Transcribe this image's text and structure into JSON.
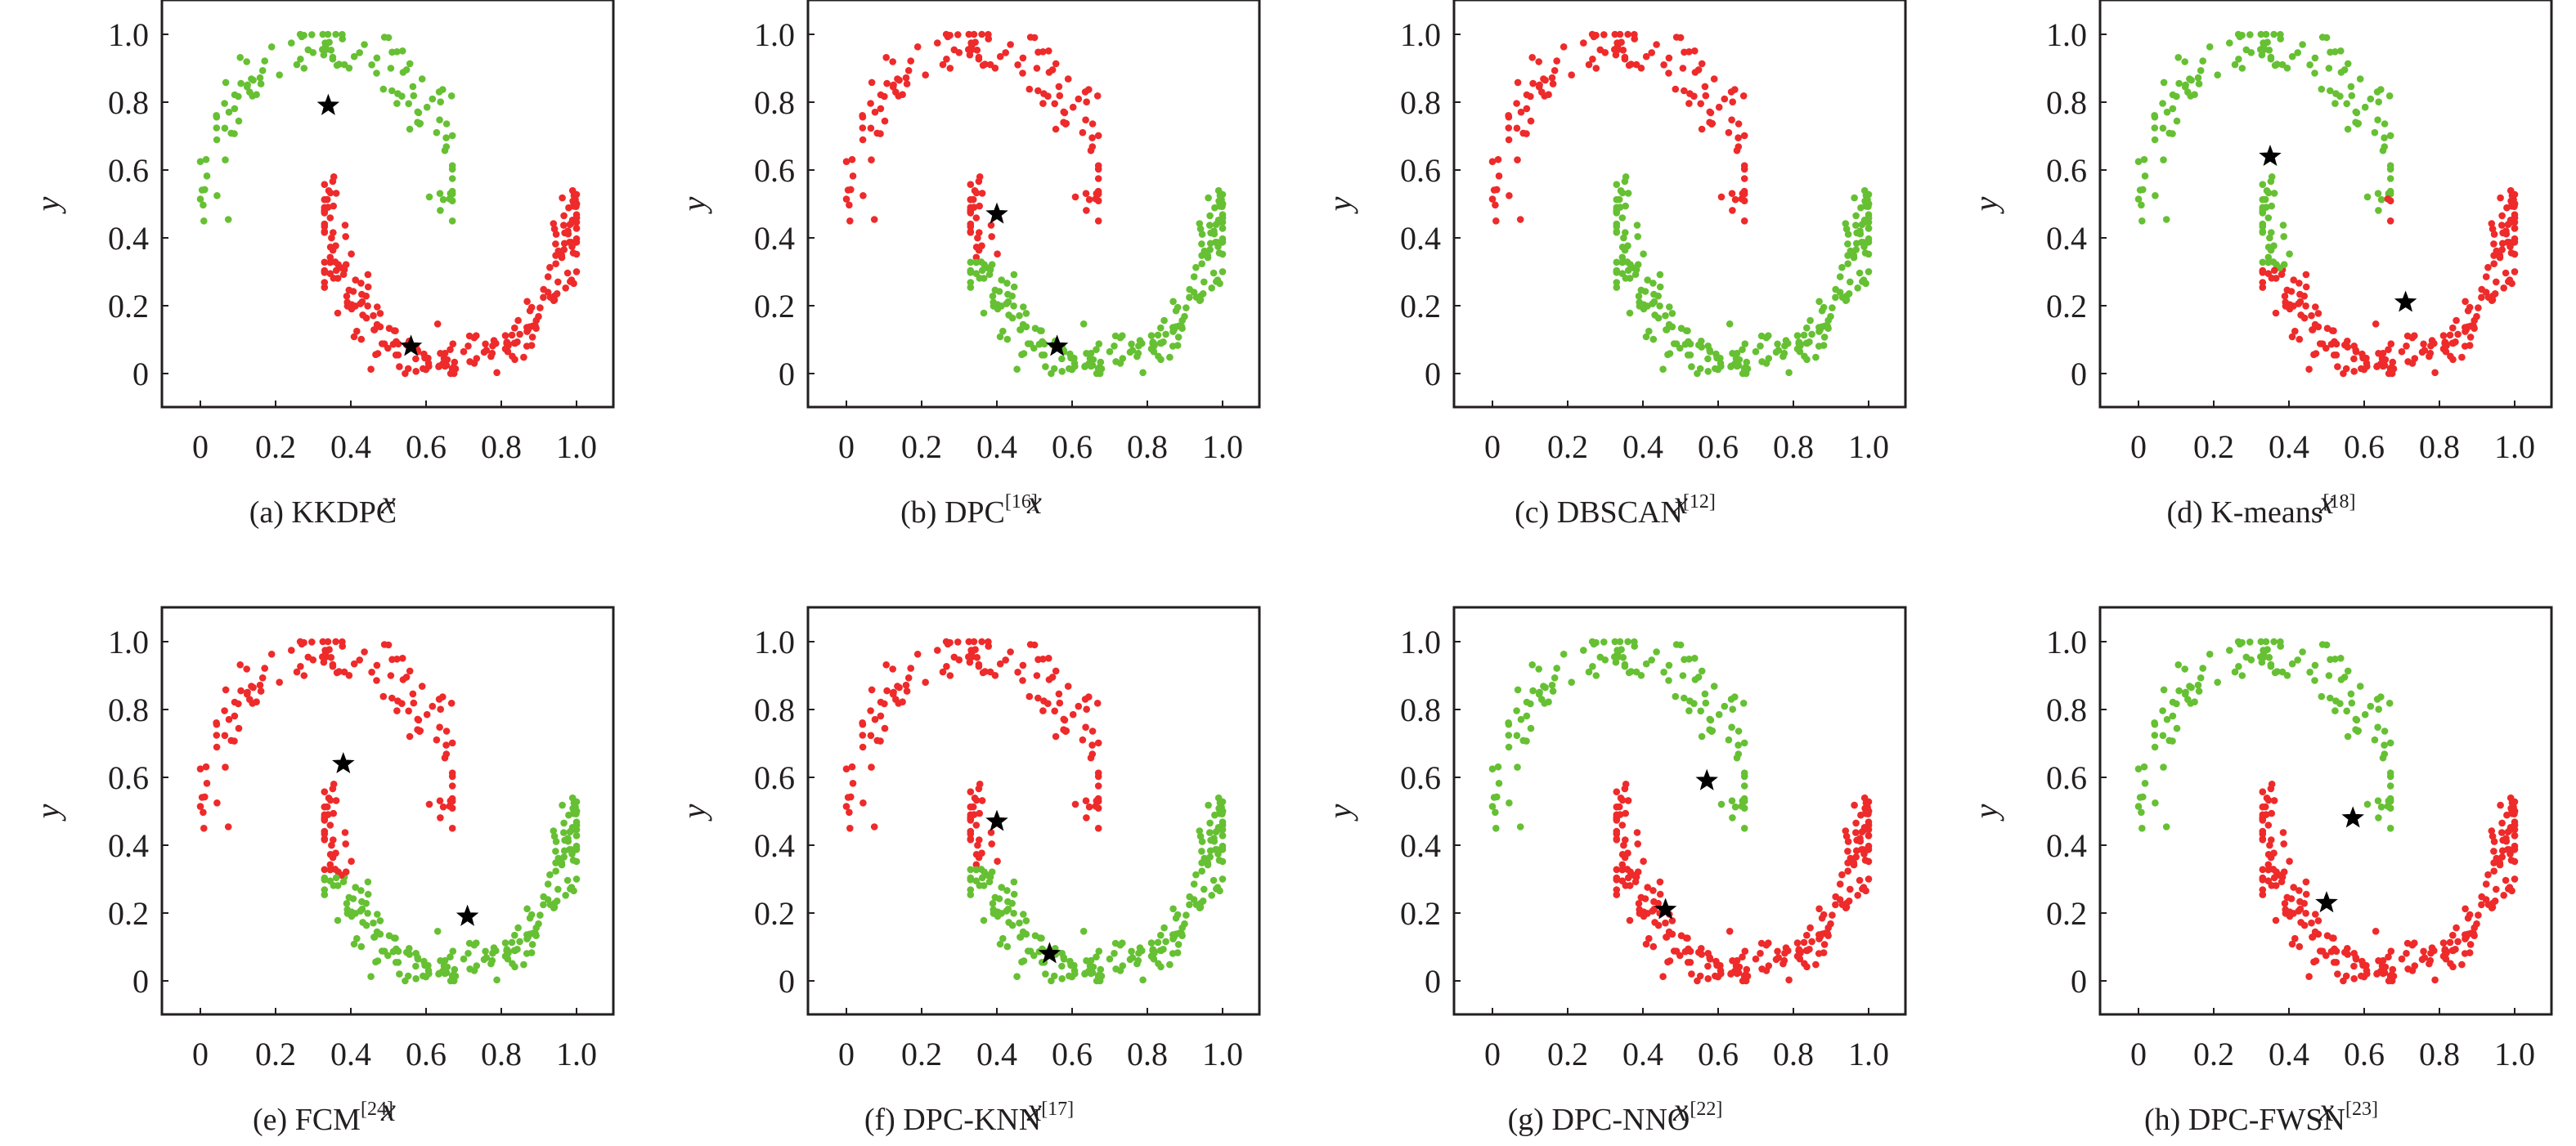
{
  "chart_data": [
    {
      "id": "a",
      "type": "scatter",
      "title_prefix": "(a) KKDPC",
      "title_ref": "",
      "rule": {
        "upper": "green",
        "lower": "red"
      },
      "centers": [
        [
          0.34,
          0.79
        ],
        [
          0.56,
          0.08
        ]
      ]
    },
    {
      "id": "b",
      "type": "scatter",
      "title_prefix": "(b) DPC",
      "title_ref": "[16]",
      "rule": {
        "upper": "red",
        "lower": "green",
        "lower_red_if": {
          "x_max": 0.44,
          "y_min": 0.34
        }
      },
      "centers": [
        [
          0.4,
          0.47
        ],
        [
          0.56,
          0.08
        ]
      ]
    },
    {
      "id": "c",
      "type": "scatter",
      "title_prefix": "(c) DBSCAN",
      "title_ref": "[12]",
      "rule": {
        "upper": "red",
        "lower": "green"
      },
      "centers": []
    },
    {
      "id": "d",
      "type": "scatter",
      "title_prefix": "(d) K-means",
      "title_ref": "[18]",
      "rule": {
        "upper": "green",
        "lower": "red",
        "lower_green_if": {
          "x_max": 0.44,
          "y_min": 0.31
        },
        "upper_red_if": {
          "x_min": 0.65,
          "y_max": 0.52
        }
      },
      "centers": [
        [
          0.35,
          0.64
        ],
        [
          0.71,
          0.21
        ]
      ]
    },
    {
      "id": "e",
      "type": "scatter",
      "title_prefix": "(e) FCM",
      "title_ref": "[24]",
      "rule": {
        "upper": "red",
        "lower": "green",
        "lower_red_if": {
          "x_max": 0.44,
          "y_min": 0.31
        }
      },
      "centers": [
        [
          0.38,
          0.64
        ],
        [
          0.71,
          0.19
        ]
      ]
    },
    {
      "id": "f",
      "type": "scatter",
      "title_prefix": "(f) DPC-KNN",
      "title_ref": "[17]",
      "rule": {
        "upper": "red",
        "lower": "green",
        "lower_red_if": {
          "x_max": 0.44,
          "y_min": 0.34
        }
      },
      "centers": [
        [
          0.4,
          0.47
        ],
        [
          0.54,
          0.08
        ]
      ]
    },
    {
      "id": "g",
      "type": "scatter",
      "title_prefix": "(g) DPC-NNO",
      "title_ref": "[22]",
      "rule": {
        "upper": "green",
        "lower": "red"
      },
      "centers": [
        [
          0.57,
          0.59
        ],
        [
          0.46,
          0.21
        ]
      ]
    },
    {
      "id": "h",
      "type": "scatter",
      "title_prefix": "(h) DPC-FWSN",
      "title_ref": "[23]",
      "rule": {
        "upper": "green",
        "lower": "red"
      },
      "centers": [
        [
          0.57,
          0.48
        ],
        [
          0.5,
          0.23
        ]
      ]
    }
  ],
  "axes": {
    "xlabel": "x",
    "ylabel": "y",
    "xlim": [
      -0.1,
      1.1
    ],
    "ylim": [
      -0.1,
      1.1
    ],
    "xticks": [
      0,
      0.2,
      0.4,
      0.6,
      0.8,
      1.0
    ],
    "xtick_labels": [
      "0",
      "0.2",
      "0.4",
      "0.6",
      "0.8",
      "1.0"
    ],
    "yticks": [
      0,
      0.2,
      0.4,
      0.6,
      0.8,
      1.0
    ],
    "ytick_labels": [
      "0",
      "0.2",
      "0.4",
      "0.6",
      "0.8",
      "1.0"
    ],
    "grid": false
  },
  "colors": {
    "red": "#ee2a2a",
    "green": "#66c033",
    "center": "#000000"
  },
  "dataset": {
    "name": "two moons",
    "upper_moon_count": 125,
    "lower_moon_count": 240,
    "upper_moon": {
      "x_range": [
        0.0,
        0.67
      ],
      "y_range": [
        0.45,
        1.0
      ]
    },
    "lower_moon": {
      "x_range": [
        0.33,
        1.0
      ],
      "y_range": [
        0.0,
        0.58
      ]
    }
  }
}
